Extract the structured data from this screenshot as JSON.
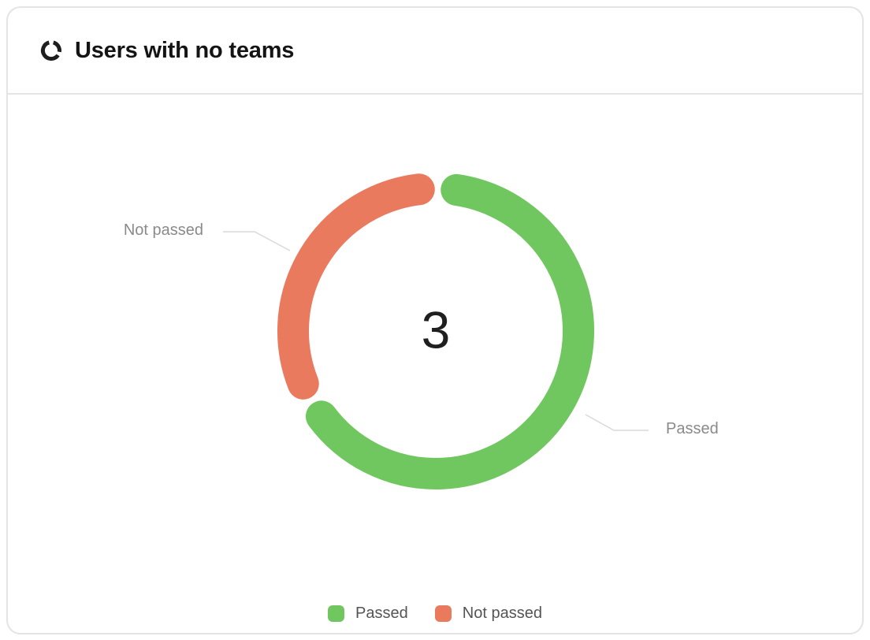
{
  "header": {
    "title": "Users with no teams",
    "icon": "donut-chart-icon"
  },
  "chart_data": {
    "type": "pie",
    "variant": "donut",
    "title": "Users with no teams",
    "center_label": "3",
    "total": 3,
    "segments": [
      {
        "label": "Passed",
        "value": 2,
        "color": "#71C75F"
      },
      {
        "label": "Not passed",
        "value": 1,
        "color": "#E97A5E"
      }
    ],
    "legend": {
      "position": "bottom",
      "items": [
        "Passed",
        "Not passed"
      ]
    },
    "callouts": [
      {
        "label": "Not passed",
        "side": "left"
      },
      {
        "label": "Passed",
        "side": "right"
      }
    ]
  },
  "colors": {
    "card_border": "#e4e4e4",
    "label_line": "#d9d9d9",
    "callout_text": "#8a8a8a",
    "legend_text": "#545454",
    "title_text": "#141414",
    "center_text": "#1f1f1f"
  }
}
